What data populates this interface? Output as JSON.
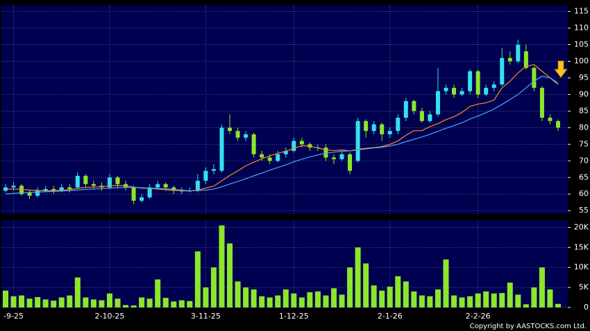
{
  "chart_data": [
    {
      "type": "candlestick",
      "categories": [
        null,
        "-9-25",
        null,
        null,
        null,
        null,
        null,
        null,
        null,
        null,
        null,
        null,
        null,
        "2-10-25",
        null,
        null,
        null,
        null,
        null,
        null,
        null,
        null,
        null,
        null,
        null,
        "3-11-25",
        null,
        null,
        null,
        null,
        null,
        null,
        null,
        null,
        null,
        null,
        "1-12-25",
        null,
        null,
        null,
        null,
        null,
        null,
        null,
        null,
        null,
        null,
        null,
        "2-1-26",
        null,
        null,
        null,
        null,
        null,
        null,
        null,
        null,
        null,
        null,
        "2-2-26",
        null,
        null,
        null,
        null,
        null,
        null,
        null,
        null,
        null,
        null
      ],
      "open": [
        61,
        62,
        62.5,
        60.5,
        59.5,
        61,
        61.5,
        61,
        62,
        62,
        65.5,
        63,
        62.5,
        62,
        65,
        63,
        62,
        58,
        59,
        62,
        63,
        62,
        61,
        61,
        61,
        64,
        67,
        67,
        80,
        79,
        77,
        78,
        72,
        71,
        70,
        72,
        73,
        76,
        75,
        74,
        74,
        71,
        70.5,
        72,
        70,
        82,
        79,
        81,
        78,
        79,
        83,
        88,
        85,
        82,
        84,
        91,
        92,
        90,
        91,
        97,
        90,
        92,
        93,
        101,
        100,
        103,
        98,
        92,
        83,
        82
      ],
      "high": [
        63,
        63.5,
        63,
        61,
        62,
        62.5,
        62.5,
        63,
        63,
        66.5,
        66,
        64,
        63.5,
        66,
        65.5,
        64,
        62.5,
        60,
        63,
        64,
        63.5,
        62.5,
        62,
        62,
        66,
        68,
        69,
        81,
        84,
        80,
        79,
        78.5,
        73,
        72,
        73,
        74,
        77,
        77,
        75.5,
        75,
        75,
        72,
        73,
        72.5,
        83,
        82.5,
        82,
        81.5,
        80,
        84,
        89,
        88.5,
        86,
        85,
        98,
        93,
        93,
        92,
        97.5,
        97.5,
        93,
        94,
        104,
        103,
        106.5,
        105,
        98.5,
        92.5,
        84,
        82.5
      ],
      "low": [
        60.5,
        61,
        59.5,
        58.5,
        59,
        60.5,
        60,
        60.5,
        60.5,
        61.5,
        62,
        61.5,
        61,
        61.5,
        62,
        61,
        57,
        57.5,
        58.5,
        61.5,
        61,
        60,
        60,
        60.5,
        60.5,
        63,
        66,
        66.5,
        78,
        76,
        76,
        71,
        70,
        69,
        69.5,
        71,
        72.5,
        74,
        73,
        73,
        70,
        69,
        70,
        66,
        69.5,
        77,
        78,
        76,
        77,
        78,
        82,
        84,
        81.5,
        81.5,
        83.5,
        90,
        89,
        89.5,
        90,
        89,
        89.5,
        91,
        92.5,
        99,
        99.5,
        97.5,
        91,
        82,
        81,
        79
      ],
      "close": [
        62,
        62.5,
        60,
        59.5,
        61,
        61.5,
        61,
        62,
        61.5,
        65.5,
        63,
        62.5,
        62,
        65,
        63,
        62,
        58,
        59,
        62,
        63,
        62,
        61,
        61,
        61,
        64,
        67,
        67.5,
        80,
        79,
        77,
        78,
        72,
        71,
        70,
        72,
        73,
        76,
        75,
        74,
        74,
        71,
        70.5,
        72,
        67,
        82,
        79,
        81,
        78,
        79,
        83,
        88,
        85,
        82,
        84,
        91,
        92,
        90,
        91,
        97,
        90,
        92,
        93,
        101,
        100,
        105,
        98,
        92,
        83,
        82,
        80
      ],
      "up_color": "#33e0f0",
      "down_color": "#8ce62a",
      "series": [
        {
          "color": "#ff8c1a",
          "values": [
            61.5,
            61.5,
            61.4,
            61.2,
            61.1,
            61,
            61,
            61.2,
            61.3,
            61.7,
            62,
            62.1,
            62.2,
            62.5,
            62.6,
            62.5,
            62.1,
            61.8,
            61.7,
            61.5,
            61.3,
            61.1,
            61,
            60.9,
            61.2,
            61.8,
            62.4,
            64,
            65.6,
            67,
            68.5,
            69.6,
            70.6,
            71.5,
            72.3,
            72.9,
            73.8,
            74.6,
            74.4,
            73.9,
            73.3,
            73.1,
            73.3,
            73,
            73.5,
            73.8,
            74,
            74.3,
            75,
            76,
            77.7,
            79.1,
            79.1,
            80.3,
            81.2,
            82.4,
            83.3,
            84.6,
            86.4,
            87.1,
            87.5,
            88.3,
            92,
            94,
            96.5,
            98.5,
            99,
            97,
            95,
            93
          ]
        },
        {
          "color": "#4aa8ff",
          "values": [
            60,
            60.2,
            60.4,
            60.5,
            60.6,
            60.7,
            60.8,
            60.9,
            61,
            61.2,
            61.4,
            61.5,
            61.6,
            61.8,
            61.9,
            62,
            62,
            61.9,
            61.8,
            61.7,
            61.6,
            61.4,
            61.2,
            61,
            61,
            61.2,
            61.5,
            62.2,
            63,
            63.8,
            64.6,
            65.5,
            66.3,
            67.2,
            68,
            68.8,
            69.7,
            70.5,
            71.2,
            71.8,
            72.3,
            72.6,
            72.9,
            73,
            73.3,
            73.6,
            73.9,
            74.1,
            74.5,
            75,
            75.8,
            76.5,
            77.2,
            78,
            78.9,
            79.8,
            80.6,
            81.5,
            82.6,
            83.5,
            84.5,
            85.6,
            87,
            88.5,
            90,
            92,
            94,
            95.5,
            95,
            93.5
          ]
        }
      ],
      "ylim": [
        54,
        117
      ],
      "yticks": [
        55,
        60,
        65,
        70,
        75,
        80,
        85,
        90,
        95,
        100,
        105,
        110,
        115
      ],
      "grid": true
    },
    {
      "type": "bar",
      "values": [
        4200,
        2800,
        3000,
        2200,
        2600,
        2000,
        1700,
        2500,
        3000,
        7500,
        2500,
        2000,
        1800,
        3500,
        2200,
        600,
        500,
        2500,
        2200,
        7000,
        2400,
        1500,
        1800,
        1600,
        14000,
        5000,
        10000,
        20500,
        16000,
        6500,
        5000,
        4500,
        2800,
        2500,
        3000,
        4500,
        3500,
        2500,
        3800,
        4000,
        3000,
        4800,
        3200,
        10000,
        15000,
        11000,
        5500,
        4200,
        5200,
        7800,
        6500,
        4000,
        3000,
        2800,
        4500,
        12000,
        3000,
        2500,
        2800,
        3500,
        4000,
        3500,
        3600,
        6200,
        3200,
        800,
        5000,
        10000,
        4500,
        900
      ],
      "color": "#8ce62a",
      "ylim": [
        0,
        21800
      ],
      "yticks": [
        0,
        {
          "value": 5000,
          "label": "5K"
        },
        {
          "value": 10000,
          "label": "10K"
        },
        {
          "value": 15000,
          "label": "15K"
        },
        {
          "value": 20000,
          "label": "20K"
        }
      ],
      "grid": true
    }
  ],
  "footer": "Copyright by AASTOCKS.com Ltd."
}
